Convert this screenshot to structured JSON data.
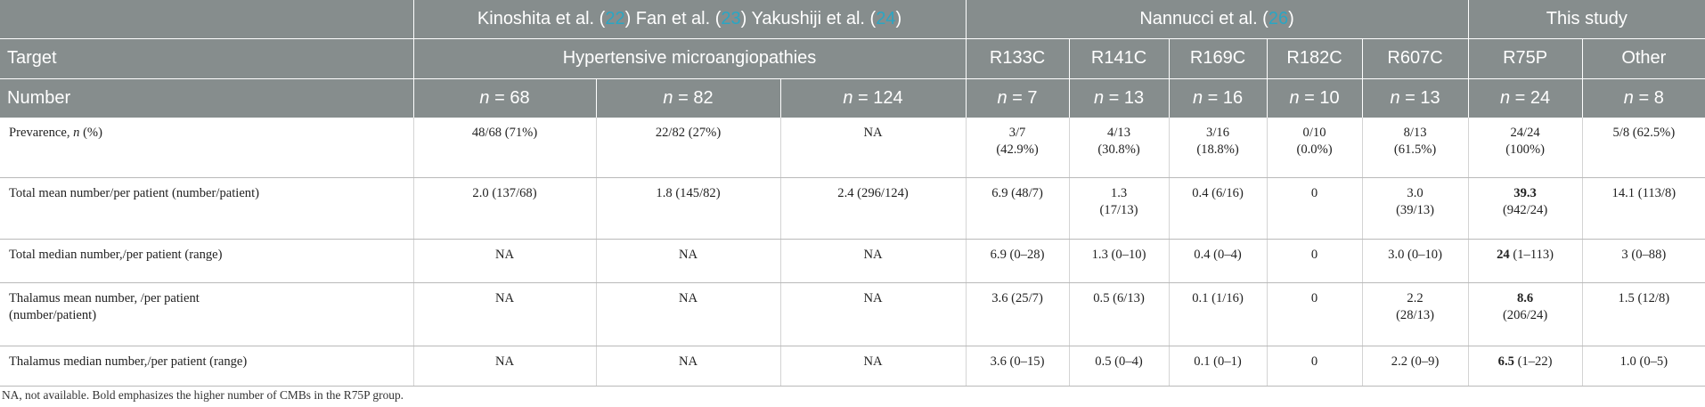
{
  "header": {
    "studies": [
      [
        "Kinoshita et al. (",
        "22",
        ") Fan et al. (",
        "23",
        ") Yakushiji et al. (",
        "24",
        ")"
      ],
      [
        "Nannucci et al. (",
        "26",
        ")"
      ],
      [
        "This study"
      ]
    ],
    "target_label": "Target",
    "targets": [
      "Hypertensive microangiopathies",
      "R133C",
      "R141C",
      "R169C",
      "R182C",
      "R607C",
      "R75P",
      "Other"
    ],
    "number_label": "Number",
    "counts": [
      [
        "n",
        " = 68"
      ],
      [
        "n",
        " = 82"
      ],
      [
        "n",
        " = 124"
      ],
      [
        "n",
        " = 7"
      ],
      [
        "n",
        " = 13"
      ],
      [
        "n",
        " = 16"
      ],
      [
        "n",
        " = 10"
      ],
      [
        "n",
        " = 13"
      ],
      [
        "n",
        " = 24"
      ],
      [
        "n",
        " = 8"
      ]
    ]
  },
  "rows": [
    {
      "label": [
        "Prevarence, ",
        {
          "text": "n",
          "italic": true
        },
        " (%)"
      ],
      "cells": [
        "48/68 (71%)",
        "22/82 (27%)",
        "NA",
        [
          {
            "text": "3/7"
          },
          {
            "text": "(42.9%)",
            "br": true
          }
        ],
        [
          {
            "text": "4/13"
          },
          {
            "text": "(30.8%)",
            "br": true
          }
        ],
        [
          {
            "text": "3/16"
          },
          {
            "text": "(18.8%)",
            "br": true
          }
        ],
        [
          {
            "text": "0/10"
          },
          {
            "text": "(0.0%)",
            "br": true
          }
        ],
        [
          {
            "text": "8/13"
          },
          {
            "text": "(61.5%)",
            "br": true
          }
        ],
        [
          {
            "text": "24/24"
          },
          {
            "text": "(100%)",
            "br": true
          }
        ],
        "5/8 (62.5%)"
      ]
    },
    {
      "label": [
        "Total mean number/per patient (number/patient)"
      ],
      "cells": [
        "2.0 (137/68)",
        "1.8 (145/82)",
        "2.4 (296/124)",
        "6.9 (48/7)",
        [
          {
            "text": "1.3"
          },
          {
            "text": "(17/13)",
            "br": true
          }
        ],
        "0.4 (6/16)",
        "0",
        [
          {
            "text": "3.0"
          },
          {
            "text": "(39/13)",
            "br": true
          }
        ],
        [
          {
            "text": "39.3",
            "bold": true
          },
          {
            "text": "(942/24)",
            "br": true
          }
        ],
        "14.1 (113/8)"
      ]
    },
    {
      "label": [
        "Total median number,/per patient (range)"
      ],
      "cells": [
        "NA",
        "NA",
        "NA",
        "6.9 (0–28)",
        "1.3 (0–10)",
        "0.4 (0–4)",
        "0",
        "3.0 (0–10)",
        [
          {
            "text": "24",
            "bold": true
          },
          {
            "text": " (1–113)"
          }
        ],
        "3 (0–88)"
      ]
    },
    {
      "label": [
        {
          "text": "Thalamus mean number, /per patient"
        },
        {
          "text": "(number/patient)",
          "br": true
        }
      ],
      "cells": [
        "NA",
        "NA",
        "NA",
        "3.6 (25/7)",
        "0.5 (6/13)",
        "0.1 (1/16)",
        "0",
        [
          {
            "text": "2.2"
          },
          {
            "text": "(28/13)",
            "br": true
          }
        ],
        [
          {
            "text": "8.6",
            "bold": true
          },
          {
            "text": "(206/24)",
            "br": true
          }
        ],
        "1.5 (12/8)"
      ]
    },
    {
      "label": [
        "Thalamus median number,/per patient (range)"
      ],
      "cells": [
        "NA",
        "NA",
        "NA",
        "3.6 (0–15)",
        "0.5 (0–4)",
        "0.1 (0–1)",
        "0",
        "2.2 (0–9)",
        [
          {
            "text": "6.5",
            "bold": true
          },
          {
            "text": " (1–22)"
          }
        ],
        "1.0 (0–5)"
      ]
    }
  ],
  "footnote": "NA, not available. Bold emphasizes the higher number of CMBs in the R75P group."
}
